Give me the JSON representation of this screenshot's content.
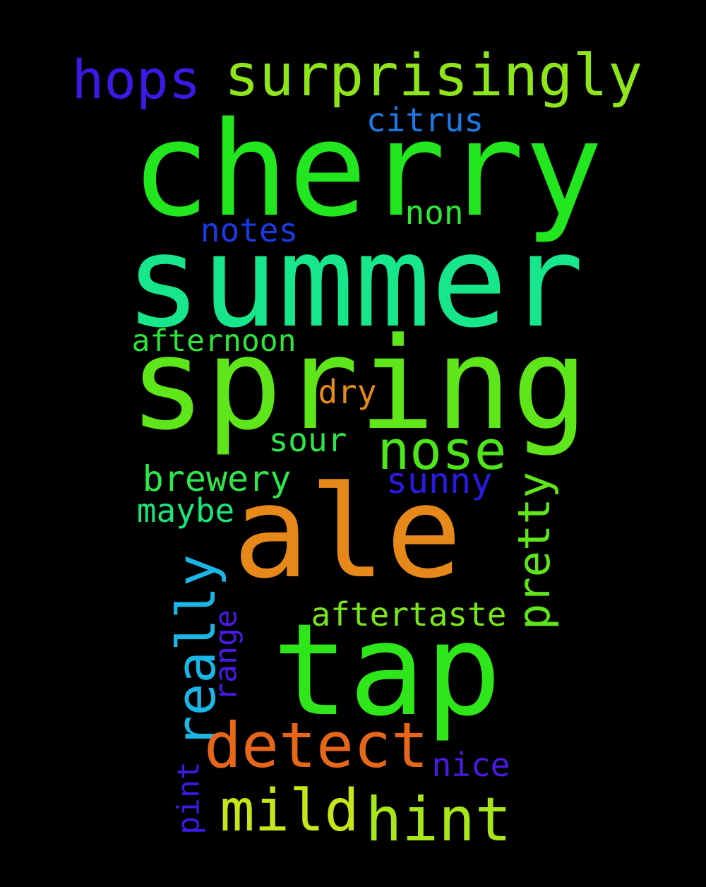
{
  "words": [
    {
      "key": "cherry",
      "text": "cherry",
      "color": "#22e61e"
    },
    {
      "key": "summer",
      "text": "summer",
      "color": "#17e68a"
    },
    {
      "key": "spring",
      "text": "spring",
      "color": "#5ee61a"
    },
    {
      "key": "tap",
      "text": "tap",
      "color": "#2ee61a"
    },
    {
      "key": "ale",
      "text": "ale",
      "color": "#e6891a"
    },
    {
      "key": "surprisingly",
      "text": "surprisingly",
      "color": "#8ee61a"
    },
    {
      "key": "hops",
      "text": "hops",
      "color": "#3a1ae6"
    },
    {
      "key": "citrus",
      "text": "citrus",
      "color": "#1a7ae6"
    },
    {
      "key": "non",
      "text": "non",
      "color": "#2ee63a"
    },
    {
      "key": "notes",
      "text": "notes",
      "color": "#1a3ae6"
    },
    {
      "key": "afternoon",
      "text": "afternoon",
      "color": "#2ee63a"
    },
    {
      "key": "dry",
      "text": "dry",
      "color": "#e68a1a"
    },
    {
      "key": "nose",
      "text": "nose",
      "color": "#4ee61a"
    },
    {
      "key": "sour",
      "text": "sour",
      "color": "#2ee64a"
    },
    {
      "key": "brewery",
      "text": "brewery",
      "color": "#2ee64a"
    },
    {
      "key": "sunny",
      "text": "sunny",
      "color": "#2a1ae6"
    },
    {
      "key": "maybe",
      "text": "maybe",
      "color": "#1ae67a"
    },
    {
      "key": "pretty",
      "text": "pretty",
      "color": "#5ee61a"
    },
    {
      "key": "really",
      "text": "really",
      "color": "#1ab6e6"
    },
    {
      "key": "aftertaste",
      "text": "aftertaste",
      "color": "#7ae61a"
    },
    {
      "key": "range",
      "text": "range",
      "color": "#4a1ae6"
    },
    {
      "key": "detect",
      "text": "detect",
      "color": "#e6661a"
    },
    {
      "key": "nice",
      "text": "nice",
      "color": "#4a1ae6"
    },
    {
      "key": "mild",
      "text": "mild",
      "color": "#c6e61a"
    },
    {
      "key": "hint",
      "text": "hint",
      "color": "#a6e61a"
    },
    {
      "key": "pint",
      "text": "pint",
      "color": "#3a1ae6"
    }
  ]
}
